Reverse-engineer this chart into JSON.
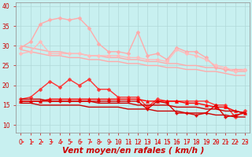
{
  "title": "",
  "xlabel": "Vent moyen/en rafales ( km/h )",
  "background_color": "#c8f0f0",
  "grid_color": "#b0d8d8",
  "x": [
    0,
    1,
    2,
    3,
    4,
    5,
    6,
    7,
    8,
    9,
    10,
    11,
    12,
    13,
    14,
    15,
    16,
    17,
    18,
    19,
    20,
    21,
    22,
    23
  ],
  "ylim": [
    8,
    41
  ],
  "xlim": [
    -0.5,
    23.5
  ],
  "lines": [
    {
      "y": [
        29.5,
        31.0,
        35.5,
        36.5,
        37.0,
        36.5,
        37.0,
        34.5,
        30.5,
        28.5,
        28.5,
        28.0,
        33.5,
        27.5,
        28.0,
        26.5,
        29.5,
        28.5,
        28.5,
        27.0,
        24.5,
        24.0,
        24.0,
        24.0
      ],
      "color": "#ffaaaa",
      "lw": 1.0,
      "marker": "D",
      "ms": 2.5
    },
    {
      "y": [
        30.0,
        29.5,
        29.0,
        28.5,
        28.5,
        28.0,
        28.0,
        27.5,
        27.5,
        27.0,
        27.0,
        26.5,
        26.5,
        26.0,
        26.0,
        25.5,
        25.5,
        25.0,
        25.0,
        24.5,
        24.5,
        24.0,
        23.5,
        23.5
      ],
      "color": "#ffaaaa",
      "lw": 1.0,
      "marker": null,
      "ms": 0
    },
    {
      "y": [
        29.0,
        28.5,
        28.0,
        27.5,
        27.5,
        27.0,
        27.0,
        26.5,
        26.5,
        26.0,
        26.0,
        25.5,
        25.5,
        25.0,
        25.0,
        24.5,
        24.5,
        24.0,
        24.0,
        23.5,
        23.5,
        23.0,
        22.5,
        22.5
      ],
      "color": "#ffaaaa",
      "lw": 1.0,
      "marker": null,
      "ms": 0
    },
    {
      "y": [
        28.0,
        28.5,
        31.0,
        28.0,
        28.0,
        28.0,
        28.0,
        27.5,
        27.5,
        27.5,
        27.5,
        27.0,
        27.0,
        26.5,
        26.5,
        26.0,
        29.0,
        28.0,
        27.5,
        26.5,
        25.0,
        24.5,
        23.5,
        24.0
      ],
      "color": "#ffbbbb",
      "lw": 1.0,
      "marker": "D",
      "ms": 2.5
    },
    {
      "y": [
        16.5,
        17.0,
        19.0,
        21.0,
        19.5,
        21.5,
        20.0,
        21.5,
        19.0,
        19.0,
        17.0,
        17.0,
        17.0,
        14.5,
        16.5,
        16.0,
        16.0,
        16.0,
        16.0,
        16.0,
        15.0,
        15.0,
        12.0,
        13.5
      ],
      "color": "#ff3333",
      "lw": 1.0,
      "marker": "P",
      "ms": 3
    },
    {
      "y": [
        16.0,
        16.0,
        16.0,
        16.5,
        16.5,
        16.5,
        16.5,
        16.5,
        16.5,
        16.5,
        16.5,
        16.5,
        16.5,
        16.0,
        16.0,
        16.0,
        16.0,
        15.5,
        15.5,
        15.0,
        14.5,
        14.5,
        13.5,
        13.0
      ],
      "color": "#ff0000",
      "lw": 1.0,
      "marker": "^",
      "ms": 3
    },
    {
      "y": [
        16.5,
        16.5,
        16.5,
        16.0,
        16.0,
        16.0,
        16.0,
        16.0,
        15.5,
        15.5,
        15.5,
        15.5,
        15.0,
        15.0,
        15.0,
        15.0,
        14.5,
        14.5,
        14.5,
        14.0,
        14.0,
        13.5,
        13.5,
        13.0
      ],
      "color": "#cc0000",
      "lw": 1.0,
      "marker": null,
      "ms": 0
    },
    {
      "y": [
        15.5,
        15.5,
        15.0,
        15.0,
        15.0,
        15.0,
        15.0,
        14.5,
        14.5,
        14.5,
        14.5,
        14.0,
        14.0,
        14.0,
        13.5,
        13.5,
        13.5,
        13.0,
        13.0,
        13.0,
        12.5,
        12.5,
        12.0,
        12.0
      ],
      "color": "#cc0000",
      "lw": 1.0,
      "marker": null,
      "ms": 0
    },
    {
      "y": [
        16.0,
        16.0,
        16.0,
        16.0,
        16.0,
        16.0,
        16.0,
        16.0,
        16.0,
        16.0,
        16.0,
        16.0,
        16.0,
        14.0,
        16.0,
        15.5,
        13.0,
        13.0,
        12.5,
        13.0,
        15.0,
        12.0,
        12.5,
        13.0
      ],
      "color": "#dd0000",
      "lw": 1.0,
      "marker": "P",
      "ms": 2.5
    }
  ],
  "yticks": [
    10,
    15,
    20,
    25,
    30,
    35,
    40
  ],
  "tick_fontsize": 5.5,
  "label_fontsize": 7.5,
  "xlabel_bold": true,
  "xlabel_italic": true
}
